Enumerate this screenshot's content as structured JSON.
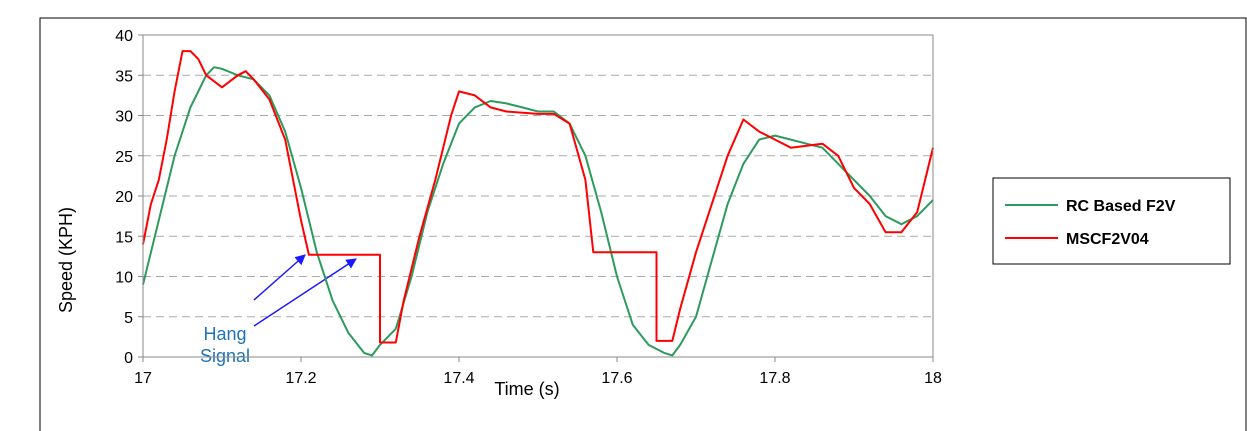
{
  "chart_data": {
    "type": "line",
    "x_label": "Time (s)",
    "y_label": "Speed (KPH)",
    "xlim": [
      17,
      18
    ],
    "xticks": [
      17,
      17.2,
      17.4,
      17.6,
      17.8,
      18
    ],
    "ylim": [
      0,
      40
    ],
    "yticks": [
      0,
      5,
      10,
      15,
      20,
      25,
      30,
      35,
      40
    ],
    "grid": true,
    "legend": "right",
    "annotation_lines": [
      "Signal",
      "Hang"
    ],
    "series": [
      {
        "name": "RC Based F2V",
        "color": "#2e9b5e",
        "x": [
          17.0,
          17.02,
          17.04,
          17.06,
          17.08,
          17.09,
          17.1,
          17.12,
          17.14,
          17.16,
          17.18,
          17.2,
          17.22,
          17.24,
          17.26,
          17.28,
          17.29,
          17.3,
          17.32,
          17.34,
          17.36,
          17.38,
          17.4,
          17.42,
          17.44,
          17.46,
          17.48,
          17.5,
          17.52,
          17.54,
          17.56,
          17.58,
          17.6,
          17.62,
          17.64,
          17.66,
          17.67,
          17.68,
          17.7,
          17.72,
          17.74,
          17.76,
          17.78,
          17.8,
          17.82,
          17.84,
          17.86,
          17.88,
          17.9,
          17.92,
          17.94,
          17.96,
          17.98,
          18.0
        ],
        "values": [
          9,
          17,
          25,
          31,
          35,
          36,
          35.8,
          35,
          34.5,
          32.5,
          28,
          21,
          13,
          7,
          3,
          0.5,
          0.2,
          1.5,
          3.5,
          10,
          18,
          24,
          29,
          31,
          31.8,
          31.5,
          31,
          30.5,
          30.5,
          29,
          25,
          18,
          10,
          4,
          1.5,
          0.5,
          0.2,
          1.5,
          5,
          12,
          19,
          24,
          27,
          27.5,
          27,
          26.5,
          26,
          24,
          22,
          20,
          17.5,
          16.5,
          17.5,
          19.5
        ]
      },
      {
        "name": "MSCF2V04",
        "color": "#ff0000",
        "x": [
          17.0,
          17.01,
          17.02,
          17.03,
          17.04,
          17.05,
          17.06,
          17.07,
          17.08,
          17.1,
          17.12,
          17.13,
          17.14,
          17.16,
          17.18,
          17.19,
          17.2,
          17.21,
          17.3,
          17.3,
          17.32,
          17.33,
          17.35,
          17.37,
          17.39,
          17.4,
          17.42,
          17.44,
          17.46,
          17.5,
          17.52,
          17.54,
          17.56,
          17.57,
          17.65,
          17.65,
          17.67,
          17.68,
          17.7,
          17.72,
          17.74,
          17.76,
          17.78,
          17.8,
          17.82,
          17.86,
          17.88,
          17.9,
          17.92,
          17.94,
          17.96,
          17.98,
          18.0
        ],
        "values": [
          14,
          19,
          22,
          27,
          33,
          38,
          38,
          37,
          35,
          33.5,
          35,
          35.5,
          34.5,
          32,
          27,
          22,
          17,
          12.7,
          12.7,
          1.8,
          1.8,
          7,
          15,
          22,
          30,
          33,
          32.5,
          31,
          30.5,
          30.2,
          30.2,
          29,
          22,
          13,
          13,
          2,
          2,
          6,
          13,
          19,
          25,
          29.5,
          28,
          27,
          26,
          26.5,
          25,
          21,
          19,
          15.5,
          15.5,
          18,
          26
        ]
      }
    ]
  }
}
